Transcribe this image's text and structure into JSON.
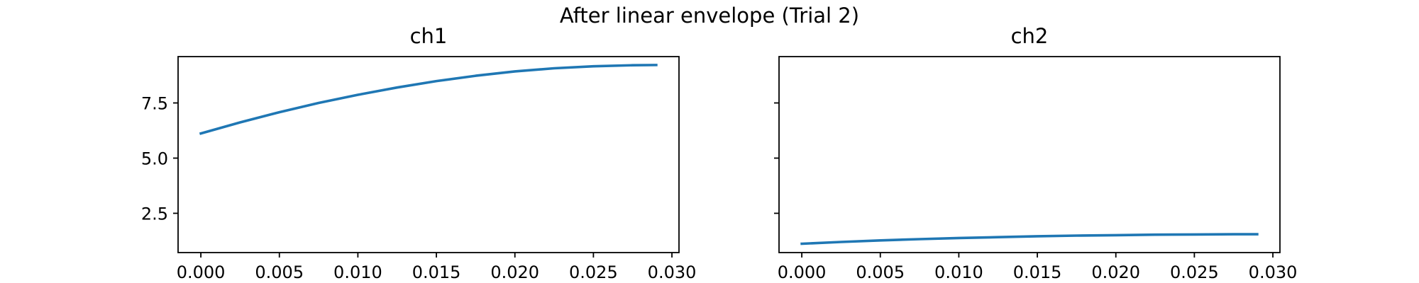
{
  "figure": {
    "suptitle": "After linear envelope (Trial 2)"
  },
  "chart_data": [
    {
      "type": "line",
      "title": "ch1",
      "xlabel": "",
      "ylabel": "",
      "xlim": [
        -0.00145,
        0.03045
      ],
      "ylim": [
        0.72,
        9.6
      ],
      "xticks": [
        "0.000",
        "0.005",
        "0.010",
        "0.015",
        "0.020",
        "0.025",
        "0.030"
      ],
      "yticks": [
        "2.5",
        "5.0",
        "7.5"
      ],
      "grid": false,
      "line_color": "#1f77b4",
      "series": [
        {
          "x": [
            0.0,
            0.0025,
            0.005,
            0.0075,
            0.01,
            0.0125,
            0.015,
            0.0175,
            0.02,
            0.0225,
            0.025,
            0.0275,
            0.029
          ],
          "values": [
            6.12,
            6.62,
            7.08,
            7.5,
            7.87,
            8.2,
            8.49,
            8.73,
            8.93,
            9.07,
            9.16,
            9.21,
            9.22
          ]
        }
      ]
    },
    {
      "type": "line",
      "title": "ch2",
      "xlabel": "",
      "ylabel": "",
      "xlim": [
        -0.00145,
        0.03045
      ],
      "ylim": [
        0.72,
        9.6
      ],
      "xticks": [
        "0.000",
        "0.005",
        "0.010",
        "0.015",
        "0.020",
        "0.025",
        "0.030"
      ],
      "yticks": [
        "",
        "",
        ""
      ],
      "grid": false,
      "line_color": "#1f77b4",
      "series": [
        {
          "x": [
            0.0,
            0.0025,
            0.005,
            0.0075,
            0.01,
            0.0125,
            0.015,
            0.0175,
            0.02,
            0.0225,
            0.025,
            0.0275,
            0.029
          ],
          "values": [
            1.12,
            1.2,
            1.27,
            1.33,
            1.38,
            1.42,
            1.46,
            1.49,
            1.51,
            1.53,
            1.54,
            1.55,
            1.55
          ]
        }
      ]
    }
  ]
}
